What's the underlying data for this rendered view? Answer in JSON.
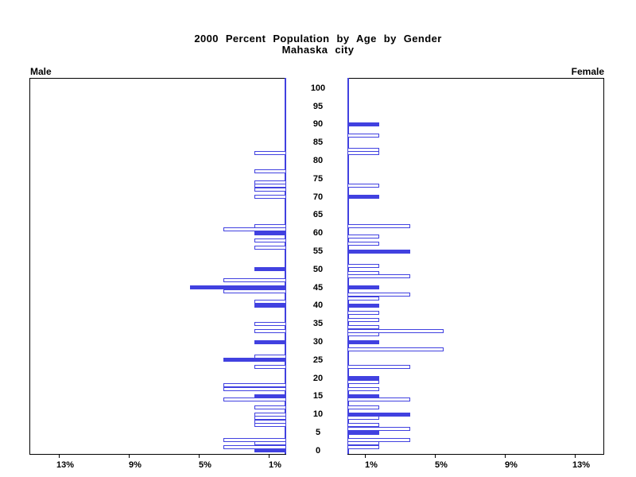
{
  "title": {
    "line1": "2000 Percent Population by Age by Gender",
    "line2": "Mahaska city"
  },
  "panel_labels": {
    "male": "Male",
    "female": "Female"
  },
  "colors": {
    "bar_blue": "#4141E0",
    "axis_black": "#000000",
    "background": "#FFFFFF"
  },
  "chart_data": {
    "type": "bar",
    "subtype": "population-pyramid",
    "title": "2000 Percent Population by Age by Gender",
    "subtitle": "Mahaska city",
    "legend_position": "none",
    "grid": false,
    "age_axis": {
      "min": 0,
      "max": 100,
      "step": 5
    },
    "pct_axis": {
      "ticks": [
        1,
        5,
        9,
        13
      ],
      "tick_suffix": "%",
      "max": 14.5
    },
    "series": [
      {
        "name": "Male",
        "orientation": "left",
        "bars": [
          {
            "age": 82,
            "value": 1.8,
            "style": "outline"
          },
          {
            "age": 77,
            "value": 1.8,
            "style": "outline"
          },
          {
            "age": 74,
            "value": 1.8,
            "style": "outline"
          },
          {
            "age": 73,
            "value": 1.8,
            "style": "outline"
          },
          {
            "age": 72,
            "value": 1.8,
            "style": "outline"
          },
          {
            "age": 70,
            "value": 1.8,
            "style": "outline"
          },
          {
            "age": 62,
            "value": 1.8,
            "style": "outline"
          },
          {
            "age": 61,
            "value": 3.6,
            "style": "outline"
          },
          {
            "age": 60,
            "value": 1.8,
            "style": "solid"
          },
          {
            "age": 58,
            "value": 1.8,
            "style": "outline"
          },
          {
            "age": 56,
            "value": 1.8,
            "style": "outline"
          },
          {
            "age": 50,
            "value": 1.8,
            "style": "solid"
          },
          {
            "age": 47,
            "value": 3.6,
            "style": "outline"
          },
          {
            "age": 45,
            "value": 5.5,
            "style": "solid"
          },
          {
            "age": 44,
            "value": 3.6,
            "style": "outline"
          },
          {
            "age": 41,
            "value": 1.8,
            "style": "outline"
          },
          {
            "age": 40,
            "value": 1.8,
            "style": "solid"
          },
          {
            "age": 35,
            "value": 1.8,
            "style": "outline"
          },
          {
            "age": 33,
            "value": 1.8,
            "style": "outline"
          },
          {
            "age": 30,
            "value": 1.8,
            "style": "solid"
          },
          {
            "age": 26,
            "value": 1.8,
            "style": "outline"
          },
          {
            "age": 25,
            "value": 3.6,
            "style": "solid"
          },
          {
            "age": 23,
            "value": 1.8,
            "style": "outline"
          },
          {
            "age": 18,
            "value": 3.6,
            "style": "outline"
          },
          {
            "age": 17,
            "value": 3.6,
            "style": "outline"
          },
          {
            "age": 15,
            "value": 1.8,
            "style": "solid"
          },
          {
            "age": 14,
            "value": 3.6,
            "style": "outline"
          },
          {
            "age": 12,
            "value": 1.8,
            "style": "outline"
          },
          {
            "age": 10,
            "value": 1.8,
            "style": "outline"
          },
          {
            "age": 9,
            "value": 1.8,
            "style": "outline"
          },
          {
            "age": 8,
            "value": 1.8,
            "style": "outline"
          },
          {
            "age": 7,
            "value": 1.8,
            "style": "outline"
          },
          {
            "age": 3,
            "value": 3.6,
            "style": "outline"
          },
          {
            "age": 2,
            "value": 1.8,
            "style": "outline"
          },
          {
            "age": 1,
            "value": 3.6,
            "style": "outline"
          },
          {
            "age": 0,
            "value": 1.8,
            "style": "solid"
          }
        ]
      },
      {
        "name": "Female",
        "orientation": "right",
        "bars": [
          {
            "age": 90,
            "value": 1.8,
            "style": "solid"
          },
          {
            "age": 87,
            "value": 1.8,
            "style": "outline"
          },
          {
            "age": 83,
            "value": 1.8,
            "style": "outline"
          },
          {
            "age": 82,
            "value": 1.8,
            "style": "outline"
          },
          {
            "age": 73,
            "value": 1.8,
            "style": "outline"
          },
          {
            "age": 70,
            "value": 1.8,
            "style": "solid"
          },
          {
            "age": 62,
            "value": 3.6,
            "style": "outline"
          },
          {
            "age": 59,
            "value": 1.8,
            "style": "outline"
          },
          {
            "age": 57,
            "value": 1.8,
            "style": "outline"
          },
          {
            "age": 55,
            "value": 3.6,
            "style": "solid"
          },
          {
            "age": 51,
            "value": 1.8,
            "style": "outline"
          },
          {
            "age": 49,
            "value": 1.8,
            "style": "outline"
          },
          {
            "age": 48,
            "value": 3.6,
            "style": "outline"
          },
          {
            "age": 45,
            "value": 1.8,
            "style": "solid"
          },
          {
            "age": 43,
            "value": 3.6,
            "style": "outline"
          },
          {
            "age": 42,
            "value": 1.8,
            "style": "outline"
          },
          {
            "age": 40,
            "value": 1.8,
            "style": "solid"
          },
          {
            "age": 38,
            "value": 1.8,
            "style": "outline"
          },
          {
            "age": 36,
            "value": 1.8,
            "style": "outline"
          },
          {
            "age": 34,
            "value": 1.8,
            "style": "outline"
          },
          {
            "age": 33,
            "value": 5.5,
            "style": "outline"
          },
          {
            "age": 32,
            "value": 1.8,
            "style": "outline"
          },
          {
            "age": 30,
            "value": 1.8,
            "style": "solid"
          },
          {
            "age": 28,
            "value": 5.5,
            "style": "outline"
          },
          {
            "age": 23,
            "value": 3.6,
            "style": "outline"
          },
          {
            "age": 20,
            "value": 1.8,
            "style": "solid"
          },
          {
            "age": 19,
            "value": 1.8,
            "style": "outline"
          },
          {
            "age": 17,
            "value": 1.8,
            "style": "outline"
          },
          {
            "age": 15,
            "value": 1.8,
            "style": "solid"
          },
          {
            "age": 14,
            "value": 3.6,
            "style": "outline"
          },
          {
            "age": 12,
            "value": 1.8,
            "style": "outline"
          },
          {
            "age": 10,
            "value": 3.6,
            "style": "solid"
          },
          {
            "age": 9,
            "value": 1.8,
            "style": "outline"
          },
          {
            "age": 7,
            "value": 1.8,
            "style": "outline"
          },
          {
            "age": 6,
            "value": 3.6,
            "style": "outline"
          },
          {
            "age": 5,
            "value": 1.8,
            "style": "solid"
          },
          {
            "age": 3,
            "value": 3.6,
            "style": "outline"
          },
          {
            "age": 2,
            "value": 1.8,
            "style": "outline"
          },
          {
            "age": 1,
            "value": 1.8,
            "style": "outline"
          }
        ]
      }
    ]
  }
}
